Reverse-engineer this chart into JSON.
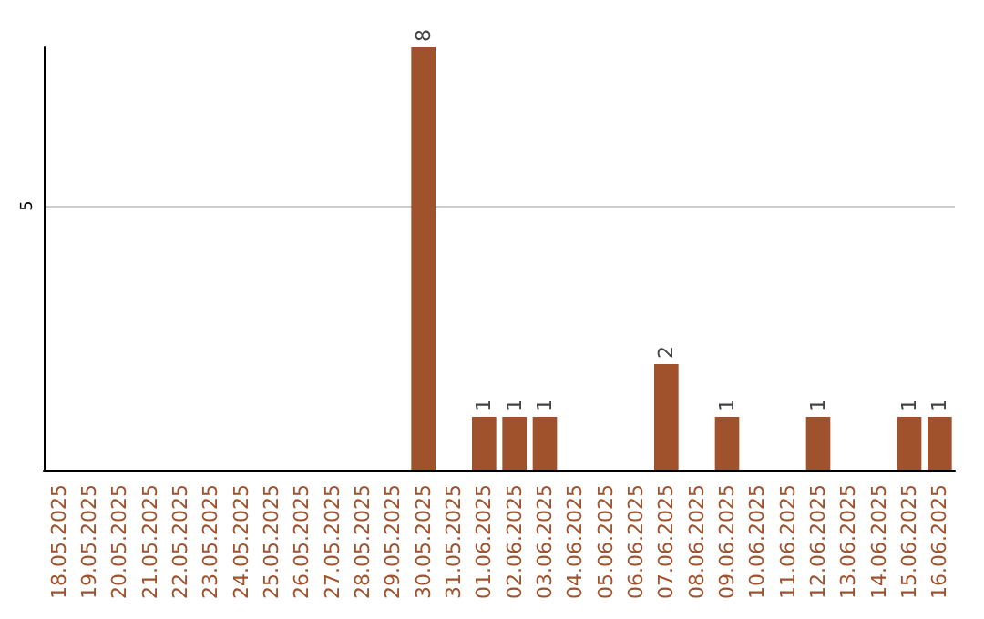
{
  "chart_data": {
    "type": "bar",
    "categories": [
      "18.05.2025",
      "19.05.2025",
      "20.05.2025",
      "21.05.2025",
      "22.05.2025",
      "23.05.2025",
      "24.05.2025",
      "25.05.2025",
      "26.05.2025",
      "27.05.2025",
      "28.05.2025",
      "29.05.2025",
      "30.05.2025",
      "31.05.2025",
      "01.06.2025",
      "02.06.2025",
      "03.06.2025",
      "04.06.2025",
      "05.06.2025",
      "06.06.2025",
      "07.06.2025",
      "08.06.2025",
      "09.06.2025",
      "10.06.2025",
      "11.06.2025",
      "12.06.2025",
      "13.06.2025",
      "14.06.2025",
      "15.06.2025",
      "16.06.2025"
    ],
    "values": [
      null,
      null,
      null,
      null,
      null,
      null,
      null,
      null,
      null,
      null,
      null,
      null,
      8,
      null,
      1,
      1,
      1,
      null,
      null,
      null,
      2,
      null,
      1,
      null,
      null,
      1,
      null,
      null,
      1,
      1
    ],
    "data_labels": true,
    "color": "#a0522d",
    "ylim": [
      0,
      8
    ],
    "yticks": [
      5
    ],
    "grid": "y"
  }
}
